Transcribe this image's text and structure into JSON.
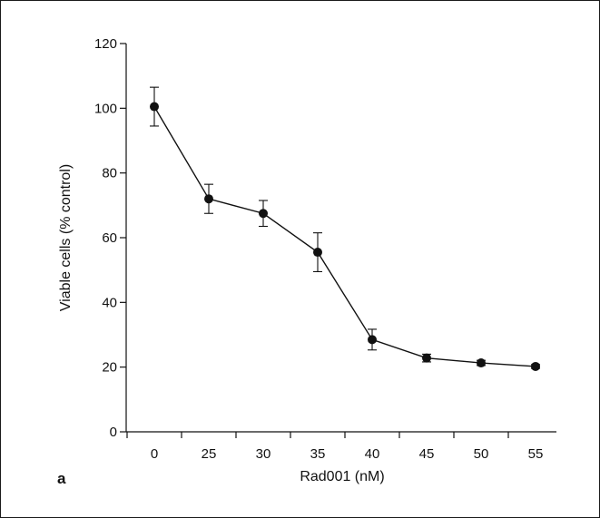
{
  "chart_data": {
    "type": "line",
    "panel_label": "a",
    "xlabel": "Rad001 (nM)",
    "ylabel": "Viable cells (% control)",
    "categories": [
      "0",
      "25",
      "30",
      "35",
      "40",
      "45",
      "50",
      "55"
    ],
    "ylim": [
      0,
      120
    ],
    "yticks": [
      "0",
      "20",
      "40",
      "60",
      "80",
      "100",
      "120"
    ],
    "grid": false,
    "series": [
      {
        "values": [
          100.5,
          72,
          67.5,
          55.5,
          28.5,
          22.8,
          21.3,
          20.2
        ],
        "errors": [
          6.0,
          4.5,
          4.0,
          6.0,
          3.2,
          1.2,
          0.8,
          0.6
        ],
        "color": "#111111"
      }
    ]
  }
}
